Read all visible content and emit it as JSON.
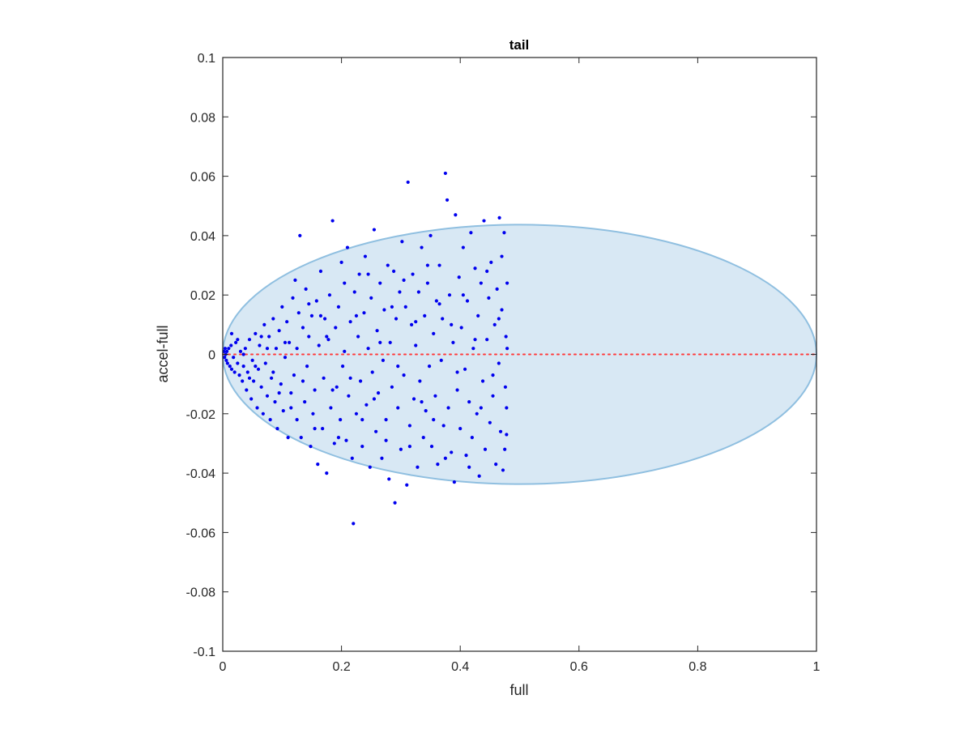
{
  "chart_data": {
    "type": "scatter",
    "title": "tail",
    "xlabel": "full",
    "ylabel": "accel-full",
    "xlim": [
      0,
      1
    ],
    "ylim": [
      -0.1,
      0.1
    ],
    "x_ticks": [
      0,
      0.2,
      0.4,
      0.6,
      0.8,
      1
    ],
    "x_tick_labels": [
      "0",
      "0.2",
      "0.4",
      "0.6",
      "0.8",
      "1"
    ],
    "y_ticks": [
      -0.1,
      -0.08,
      -0.06,
      -0.04,
      -0.02,
      0,
      0.02,
      0.04,
      0.06,
      0.08,
      0.1
    ],
    "y_tick_labels": [
      "-0.1",
      "-0.08",
      "-0.06",
      "-0.04",
      "-0.02",
      "0",
      "0.02",
      "0.04",
      "0.06",
      "0.08",
      "0.1"
    ],
    "grid": false,
    "box": true,
    "ellipse": {
      "center": [
        0.5,
        0
      ],
      "semi_axes": [
        0.5,
        0.0437
      ],
      "fill": "#d8e8f4",
      "edge": "#8fbfe0"
    },
    "reference_line": {
      "y": 0,
      "x_range": [
        0,
        1
      ],
      "style": "dotted",
      "color": "#ff3b3b"
    },
    "marker_color": "#0000ee",
    "points": [
      [
        0.002,
        0.001
      ],
      [
        0.003,
        -0.001
      ],
      [
        0.004,
        0.002
      ],
      [
        0.005,
        0.0
      ],
      [
        0.006,
        -0.002
      ],
      [
        0.007,
        0.001
      ],
      [
        0.008,
        -0.003
      ],
      [
        0.01,
        0.002
      ],
      [
        0.012,
        -0.004
      ],
      [
        0.014,
        0.003
      ],
      [
        0.015,
        -0.005
      ],
      [
        0.018,
        -0.001
      ],
      [
        0.02,
        -0.006
      ],
      [
        0.022,
        0.004
      ],
      [
        0.025,
        -0.003
      ],
      [
        0.028,
        -0.007
      ],
      [
        0.03,
        0.001
      ],
      [
        0.033,
        -0.009
      ],
      [
        0.035,
        -0.004
      ],
      [
        0.038,
        0.002
      ],
      [
        0.04,
        -0.012
      ],
      [
        0.042,
        -0.006
      ],
      [
        0.045,
        0.005
      ],
      [
        0.048,
        -0.015
      ],
      [
        0.05,
        -0.002
      ],
      [
        0.052,
        -0.009
      ],
      [
        0.055,
        0.007
      ],
      [
        0.058,
        -0.018
      ],
      [
        0.06,
        -0.005
      ],
      [
        0.062,
        0.003
      ],
      [
        0.065,
        -0.011
      ],
      [
        0.068,
        -0.02
      ],
      [
        0.07,
        0.01
      ],
      [
        0.072,
        -0.003
      ],
      [
        0.075,
        -0.014
      ],
      [
        0.078,
        0.006
      ],
      [
        0.08,
        -0.022
      ],
      [
        0.082,
        -0.008
      ],
      [
        0.085,
        0.012
      ],
      [
        0.088,
        -0.016
      ],
      [
        0.09,
        0.002
      ],
      [
        0.092,
        -0.025
      ],
      [
        0.095,
        0.008
      ],
      [
        0.098,
        -0.01
      ],
      [
        0.1,
        0.016
      ],
      [
        0.102,
        -0.019
      ],
      [
        0.105,
        -0.001
      ],
      [
        0.108,
        0.011
      ],
      [
        0.11,
        -0.028
      ],
      [
        0.112,
        0.004
      ],
      [
        0.115,
        -0.013
      ],
      [
        0.118,
        0.019
      ],
      [
        0.12,
        -0.007
      ],
      [
        0.122,
        0.025
      ],
      [
        0.125,
        -0.022
      ],
      [
        0.128,
        0.014
      ],
      [
        0.13,
        0.04
      ],
      [
        0.132,
        -0.028
      ],
      [
        0.135,
        0.009
      ],
      [
        0.138,
        -0.016
      ],
      [
        0.14,
        0.022
      ],
      [
        0.142,
        -0.004
      ],
      [
        0.145,
        0.006
      ],
      [
        0.148,
        -0.031
      ],
      [
        0.15,
        0.013
      ],
      [
        0.152,
        -0.02
      ],
      [
        0.155,
        -0.012
      ],
      [
        0.158,
        0.018
      ],
      [
        0.16,
        -0.037
      ],
      [
        0.162,
        0.003
      ],
      [
        0.165,
        0.028
      ],
      [
        0.168,
        -0.025
      ],
      [
        0.17,
        -0.008
      ],
      [
        0.172,
        0.012
      ],
      [
        0.175,
        -0.04
      ],
      [
        0.178,
        0.005
      ],
      [
        0.18,
        0.02
      ],
      [
        0.182,
        -0.018
      ],
      [
        0.185,
        0.045
      ],
      [
        0.188,
        -0.03
      ],
      [
        0.19,
        0.009
      ],
      [
        0.192,
        -0.011
      ],
      [
        0.195,
        0.016
      ],
      [
        0.198,
        -0.022
      ],
      [
        0.2,
        0.031
      ],
      [
        0.202,
        -0.004
      ],
      [
        0.205,
        0.001
      ],
      [
        0.208,
        -0.029
      ],
      [
        0.21,
        0.036
      ],
      [
        0.212,
        -0.014
      ],
      [
        0.215,
        0.011
      ],
      [
        0.218,
        -0.035
      ],
      [
        0.22,
        -0.057
      ],
      [
        0.222,
        0.021
      ],
      [
        0.225,
        -0.02
      ],
      [
        0.228,
        0.006
      ],
      [
        0.23,
        0.027
      ],
      [
        0.232,
        -0.009
      ],
      [
        0.235,
        -0.031
      ],
      [
        0.238,
        0.014
      ],
      [
        0.24,
        0.033
      ],
      [
        0.242,
        -0.017
      ],
      [
        0.245,
        0.002
      ],
      [
        0.248,
        -0.038
      ],
      [
        0.25,
        0.019
      ],
      [
        0.252,
        -0.006
      ],
      [
        0.255,
        0.042
      ],
      [
        0.258,
        -0.026
      ],
      [
        0.26,
        0.008
      ],
      [
        0.262,
        -0.013
      ],
      [
        0.265,
        0.024
      ],
      [
        0.268,
        -0.035
      ],
      [
        0.27,
        -0.002
      ],
      [
        0.272,
        0.015
      ],
      [
        0.275,
        -0.022
      ],
      [
        0.278,
        0.03
      ],
      [
        0.28,
        -0.042
      ],
      [
        0.282,
        0.004
      ],
      [
        0.285,
        -0.011
      ],
      [
        0.288,
        0.028
      ],
      [
        0.29,
        -0.05
      ],
      [
        0.292,
        0.012
      ],
      [
        0.295,
        -0.018
      ],
      [
        0.298,
        0.021
      ],
      [
        0.3,
        -0.032
      ],
      [
        0.302,
        0.038
      ],
      [
        0.305,
        -0.007
      ],
      [
        0.308,
        0.016
      ],
      [
        0.31,
        -0.044
      ],
      [
        0.312,
        0.058
      ],
      [
        0.315,
        -0.024
      ],
      [
        0.318,
        0.01
      ],
      [
        0.32,
        0.027
      ],
      [
        0.322,
        -0.015
      ],
      [
        0.325,
        0.003
      ],
      [
        0.328,
        -0.038
      ],
      [
        0.33,
        0.021
      ],
      [
        0.332,
        -0.009
      ],
      [
        0.335,
        0.036
      ],
      [
        0.338,
        -0.028
      ],
      [
        0.34,
        0.013
      ],
      [
        0.342,
        -0.019
      ],
      [
        0.345,
        0.024
      ],
      [
        0.348,
        -0.004
      ],
      [
        0.35,
        0.04
      ],
      [
        0.352,
        -0.031
      ],
      [
        0.355,
        0.007
      ],
      [
        0.358,
        -0.014
      ],
      [
        0.36,
        0.018
      ],
      [
        0.362,
        -0.037
      ],
      [
        0.365,
        0.03
      ],
      [
        0.368,
        -0.002
      ],
      [
        0.37,
        0.012
      ],
      [
        0.372,
        -0.024
      ],
      [
        0.375,
        0.061
      ],
      [
        0.378,
        0.052
      ],
      [
        0.38,
        -0.018
      ],
      [
        0.382,
        0.02
      ],
      [
        0.385,
        -0.033
      ],
      [
        0.388,
        0.004
      ],
      [
        0.39,
        -0.043
      ],
      [
        0.392,
        0.047
      ],
      [
        0.395,
        -0.012
      ],
      [
        0.398,
        0.026
      ],
      [
        0.4,
        -0.025
      ],
      [
        0.402,
        0.009
      ],
      [
        0.405,
        0.036
      ],
      [
        0.408,
        -0.005
      ],
      [
        0.41,
        -0.034
      ],
      [
        0.412,
        0.018
      ],
      [
        0.415,
        -0.016
      ],
      [
        0.418,
        0.041
      ],
      [
        0.42,
        -0.028
      ],
      [
        0.422,
        0.002
      ],
      [
        0.425,
        0.029
      ],
      [
        0.428,
        -0.02
      ],
      [
        0.43,
        0.013
      ],
      [
        0.432,
        -0.041
      ],
      [
        0.435,
        0.024
      ],
      [
        0.438,
        -0.009
      ],
      [
        0.44,
        0.045
      ],
      [
        0.442,
        -0.032
      ],
      [
        0.445,
        0.005
      ],
      [
        0.448,
        0.019
      ],
      [
        0.45,
        -0.023
      ],
      [
        0.452,
        0.031
      ],
      [
        0.455,
        -0.014
      ],
      [
        0.458,
        0.01
      ],
      [
        0.46,
        -0.037
      ],
      [
        0.462,
        0.022
      ],
      [
        0.465,
        -0.003
      ],
      [
        0.466,
        0.046
      ],
      [
        0.468,
        -0.026
      ],
      [
        0.47,
        0.015
      ],
      [
        0.472,
        -0.039
      ],
      [
        0.474,
        0.041
      ],
      [
        0.476,
        -0.011
      ],
      [
        0.477,
        0.006
      ],
      [
        0.478,
        -0.027
      ],
      [
        0.479,
        0.002
      ],
      [
        0.015,
        0.007
      ],
      [
        0.025,
        0.005
      ],
      [
        0.035,
        0.0
      ],
      [
        0.045,
        -0.008
      ],
      [
        0.055,
        -0.004
      ],
      [
        0.065,
        0.006
      ],
      [
        0.075,
        0.002
      ],
      [
        0.085,
        -0.006
      ],
      [
        0.095,
        -0.013
      ],
      [
        0.105,
        0.004
      ],
      [
        0.115,
        -0.018
      ],
      [
        0.125,
        0.002
      ],
      [
        0.135,
        -0.009
      ],
      [
        0.145,
        0.017
      ],
      [
        0.155,
        -0.025
      ],
      [
        0.165,
        0.013
      ],
      [
        0.175,
        0.006
      ],
      [
        0.185,
        -0.012
      ],
      [
        0.195,
        -0.028
      ],
      [
        0.205,
        0.024
      ],
      [
        0.215,
        -0.008
      ],
      [
        0.225,
        0.013
      ],
      [
        0.235,
        -0.022
      ],
      [
        0.245,
        0.027
      ],
      [
        0.255,
        -0.015
      ],
      [
        0.265,
        0.004
      ],
      [
        0.275,
        -0.029
      ],
      [
        0.285,
        0.016
      ],
      [
        0.295,
        -0.004
      ],
      [
        0.305,
        0.025
      ],
      [
        0.315,
        -0.031
      ],
      [
        0.325,
        0.011
      ],
      [
        0.335,
        -0.016
      ],
      [
        0.345,
        0.03
      ],
      [
        0.355,
        -0.022
      ],
      [
        0.365,
        0.017
      ],
      [
        0.375,
        -0.035
      ],
      [
        0.385,
        0.01
      ],
      [
        0.395,
        -0.006
      ],
      [
        0.405,
        0.02
      ],
      [
        0.415,
        -0.038
      ],
      [
        0.425,
        0.005
      ],
      [
        0.435,
        -0.018
      ],
      [
        0.445,
        0.028
      ],
      [
        0.455,
        -0.007
      ],
      [
        0.465,
        0.012
      ],
      [
        0.475,
        -0.032
      ],
      [
        0.479,
        0.024
      ],
      [
        0.478,
        -0.018
      ],
      [
        0.47,
        0.033
      ]
    ]
  }
}
